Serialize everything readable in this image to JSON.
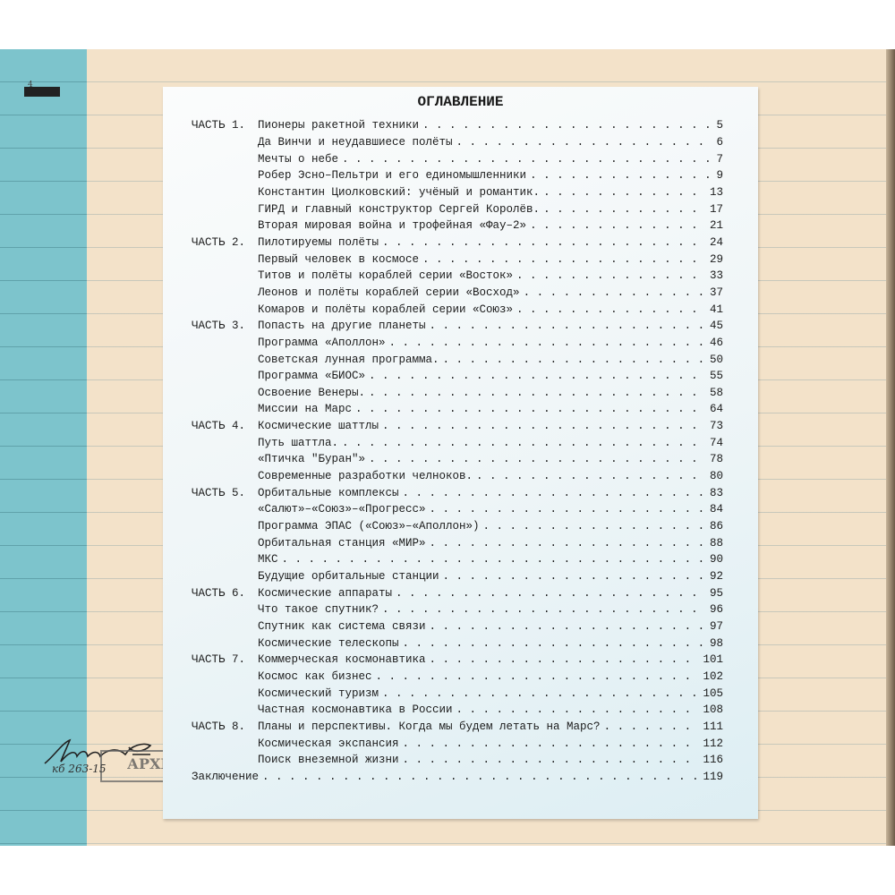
{
  "page_number": "4",
  "title": "ОГЛАВЛЕНИЕ",
  "stamp": {
    "text": "АРХИ",
    "signature": "Михаил",
    "code": "кб 263-15"
  },
  "entries": [
    {
      "part": "ЧАСТЬ 1.",
      "title": "Пионеры ракетной техники",
      "page": "5"
    },
    {
      "part": "",
      "title": "Да Винчи и неудавшиесе полёты",
      "page": "6"
    },
    {
      "part": "",
      "title": "Мечты о небе",
      "page": "7"
    },
    {
      "part": "",
      "title": "Робер Эсно–Пельтри и его единомышленники",
      "page": "9"
    },
    {
      "part": "",
      "title": "Константин Циолковский: учёный и романтик.",
      "page": "13"
    },
    {
      "part": "",
      "title": "ГИРД и главный конструктор Сергей Королёв.",
      "page": "17"
    },
    {
      "part": "",
      "title": "Вторая мировая война и трофейная «Фау–2»",
      "page": "21"
    },
    {
      "part": "ЧАСТЬ 2.",
      "title": "Пилотируемы полёты",
      "page": "24"
    },
    {
      "part": "",
      "title": "Первый человек в космосе",
      "page": "29"
    },
    {
      "part": "",
      "title": "Титов и полёты кораблей серии «Восток»",
      "page": "33"
    },
    {
      "part": "",
      "title": "Леонов и полёты кораблей серии «Восход»",
      "page": "37"
    },
    {
      "part": "",
      "title": "Комаров и полёты кораблей серии «Союз»",
      "page": "41"
    },
    {
      "part": "ЧАСТЬ 3.",
      "title": "Попасть на другие планеты",
      "page": "45"
    },
    {
      "part": "",
      "title": "Программа «Аполлон»",
      "page": "46"
    },
    {
      "part": "",
      "title": "Советская лунная программа.",
      "page": "50"
    },
    {
      "part": "",
      "title": "Программа «БИОС»",
      "page": "55"
    },
    {
      "part": "",
      "title": "Освоение Венеры.",
      "page": "58"
    },
    {
      "part": "",
      "title": "Миссии на Марс",
      "page": "64"
    },
    {
      "part": "ЧАСТЬ 4.",
      "title": "Космические шаттлы",
      "page": "73"
    },
    {
      "part": "",
      "title": "Путь шаттла.",
      "page": "74"
    },
    {
      "part": "",
      "title": "«Птичка \"Буран\"»",
      "page": "78"
    },
    {
      "part": "",
      "title": "Современные разработки челноков.",
      "page": "80"
    },
    {
      "part": "ЧАСТЬ 5.",
      "title": "Орбитальные комплексы",
      "page": "83"
    },
    {
      "part": "",
      "title": "«Салют»–«Союз»–«Прогресс»",
      "page": "84"
    },
    {
      "part": "",
      "title": "Программа  ЭПАС («Союз»–«Аполлон»)",
      "page": "86"
    },
    {
      "part": "",
      "title": "Орбитальная станция «МИР»",
      "page": "88"
    },
    {
      "part": "",
      "title": "МКС",
      "page": "90"
    },
    {
      "part": "",
      "title": "Будущие орбитальные станции",
      "page": "92"
    },
    {
      "part": "ЧАСТЬ 6.",
      "title": "Космические аппараты",
      "page": "95"
    },
    {
      "part": "",
      "title": "Что такое спутник?",
      "page": "96"
    },
    {
      "part": "",
      "title": "Спутник как система связи",
      "page": "97"
    },
    {
      "part": "",
      "title": "Космические телескопы",
      "page": "98"
    },
    {
      "part": "ЧАСТЬ 7.",
      "title": "Коммерческая космонавтика",
      "page": "101"
    },
    {
      "part": "",
      "title": "Космос как бизнес",
      "page": "102"
    },
    {
      "part": "",
      "title": "Космический туризм",
      "page": "105"
    },
    {
      "part": "",
      "title": "Частная космонавтика в России",
      "page": "108"
    },
    {
      "part": "ЧАСТЬ 8.",
      "title": "Планы и перспективы. Когда мы будем летать на Марс?",
      "page": "111"
    },
    {
      "part": "",
      "title": "Космическая экспансия",
      "page": "112"
    },
    {
      "part": "",
      "title": "Поиск внеземной жизни",
      "page": "116"
    },
    {
      "part": "",
      "title": "Заключение",
      "page": "119",
      "full": true
    }
  ]
}
